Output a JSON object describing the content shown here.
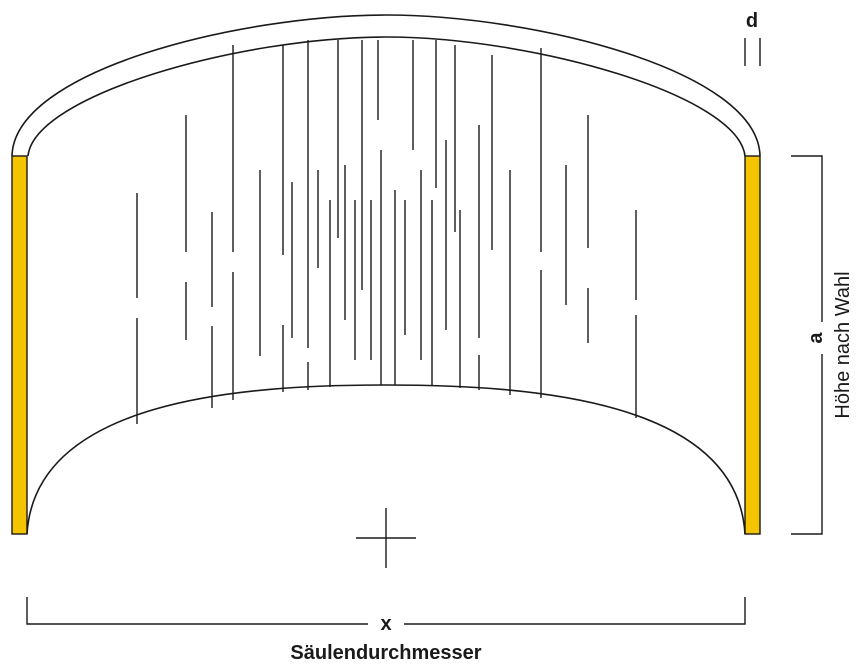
{
  "labels": {
    "d": "d",
    "a": "a",
    "height": "Höhe nach Wahl",
    "x": "x",
    "diameter": "Säulendurchmesser"
  },
  "colors": {
    "accent": "#F5C400",
    "stroke": "#1a1a1a",
    "background": "#ffffff"
  }
}
